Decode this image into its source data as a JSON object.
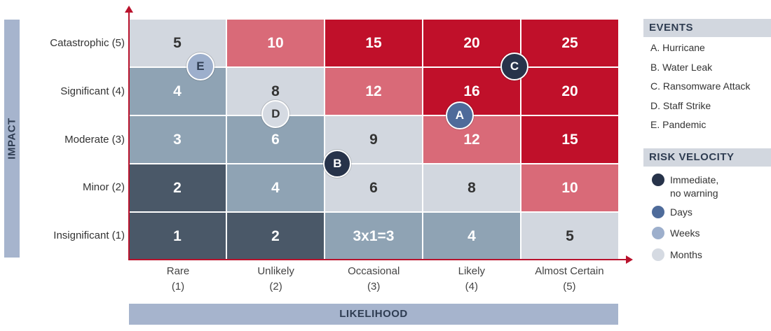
{
  "impact_axis": {
    "label": "IMPACT"
  },
  "likelihood_axis": {
    "label": "LIKELIHOOD"
  },
  "rows": [
    {
      "label": "Catastrophic (5)",
      "cells": [
        "5",
        "10",
        "15",
        "20",
        "25"
      ],
      "shades": [
        "months",
        "pink",
        "red",
        "red",
        "red"
      ]
    },
    {
      "label": "Significant (4)",
      "cells": [
        "4",
        "8",
        "12",
        "16",
        "20"
      ],
      "shades": [
        "weeks",
        "months",
        "pink",
        "red",
        "red"
      ]
    },
    {
      "label": "Moderate (3)",
      "cells": [
        "3",
        "6",
        "9",
        "12",
        "15"
      ],
      "shades": [
        "weeks",
        "weeks",
        "months",
        "pink",
        "red"
      ]
    },
    {
      "label": "Minor (2)",
      "cells": [
        "2",
        "4",
        "6",
        "8",
        "10"
      ],
      "shades": [
        "dark",
        "weeks",
        "months",
        "months",
        "pink"
      ]
    },
    {
      "label": "Insignificant (1)",
      "cells": [
        "1",
        "2",
        "3x1=3",
        "4",
        "5"
      ],
      "shades": [
        "dark",
        "dark",
        "weeks",
        "weeks",
        "months"
      ]
    }
  ],
  "columns": [
    {
      "name": "Rare",
      "score": "(1)"
    },
    {
      "name": "Unlikely",
      "score": "(2)"
    },
    {
      "name": "Occasional",
      "score": "(3)"
    },
    {
      "name": "Likely",
      "score": "(4)"
    },
    {
      "name": "Almost Certain",
      "score": "(5)"
    }
  ],
  "markers": [
    {
      "letter": "E",
      "likelihood": 1.23,
      "impact": 4.53,
      "velocity": "weeks"
    },
    {
      "letter": "C",
      "likelihood": 4.44,
      "impact": 4.53,
      "velocity": "immediate"
    },
    {
      "letter": "D",
      "likelihood": 2.0,
      "impact": 3.53,
      "velocity": "months"
    },
    {
      "letter": "A",
      "likelihood": 3.88,
      "impact": 3.5,
      "velocity": "days"
    },
    {
      "letter": "B",
      "likelihood": 2.63,
      "impact": 2.5,
      "velocity": "immediate"
    }
  ],
  "events": {
    "title": "EVENTS",
    "items": [
      "A. Hurricane",
      "B. Water Leak",
      "C. Ransomware Attack",
      "D. Staff Strike",
      "E. Pandemic"
    ]
  },
  "risk_velocity": {
    "title": "RISK VELOCITY",
    "items": [
      {
        "line1": "Immediate,",
        "line2": "no warning",
        "key": "immediate"
      },
      {
        "line1": "Days",
        "line2": "",
        "key": "days"
      },
      {
        "line1": "Weeks",
        "line2": "",
        "key": "weeks"
      },
      {
        "line1": "Months",
        "line2": "",
        "key": "months"
      }
    ]
  },
  "velocity_colors": {
    "immediate": "#27334a",
    "days": "#4e6b9a",
    "weeks": "#9dafcc",
    "months": "#d5dae2"
  },
  "marker_text_colors": {
    "immediate": "#ffffff",
    "days": "#ffffff",
    "weeks": "#2f3d52",
    "months": "#333333"
  }
}
